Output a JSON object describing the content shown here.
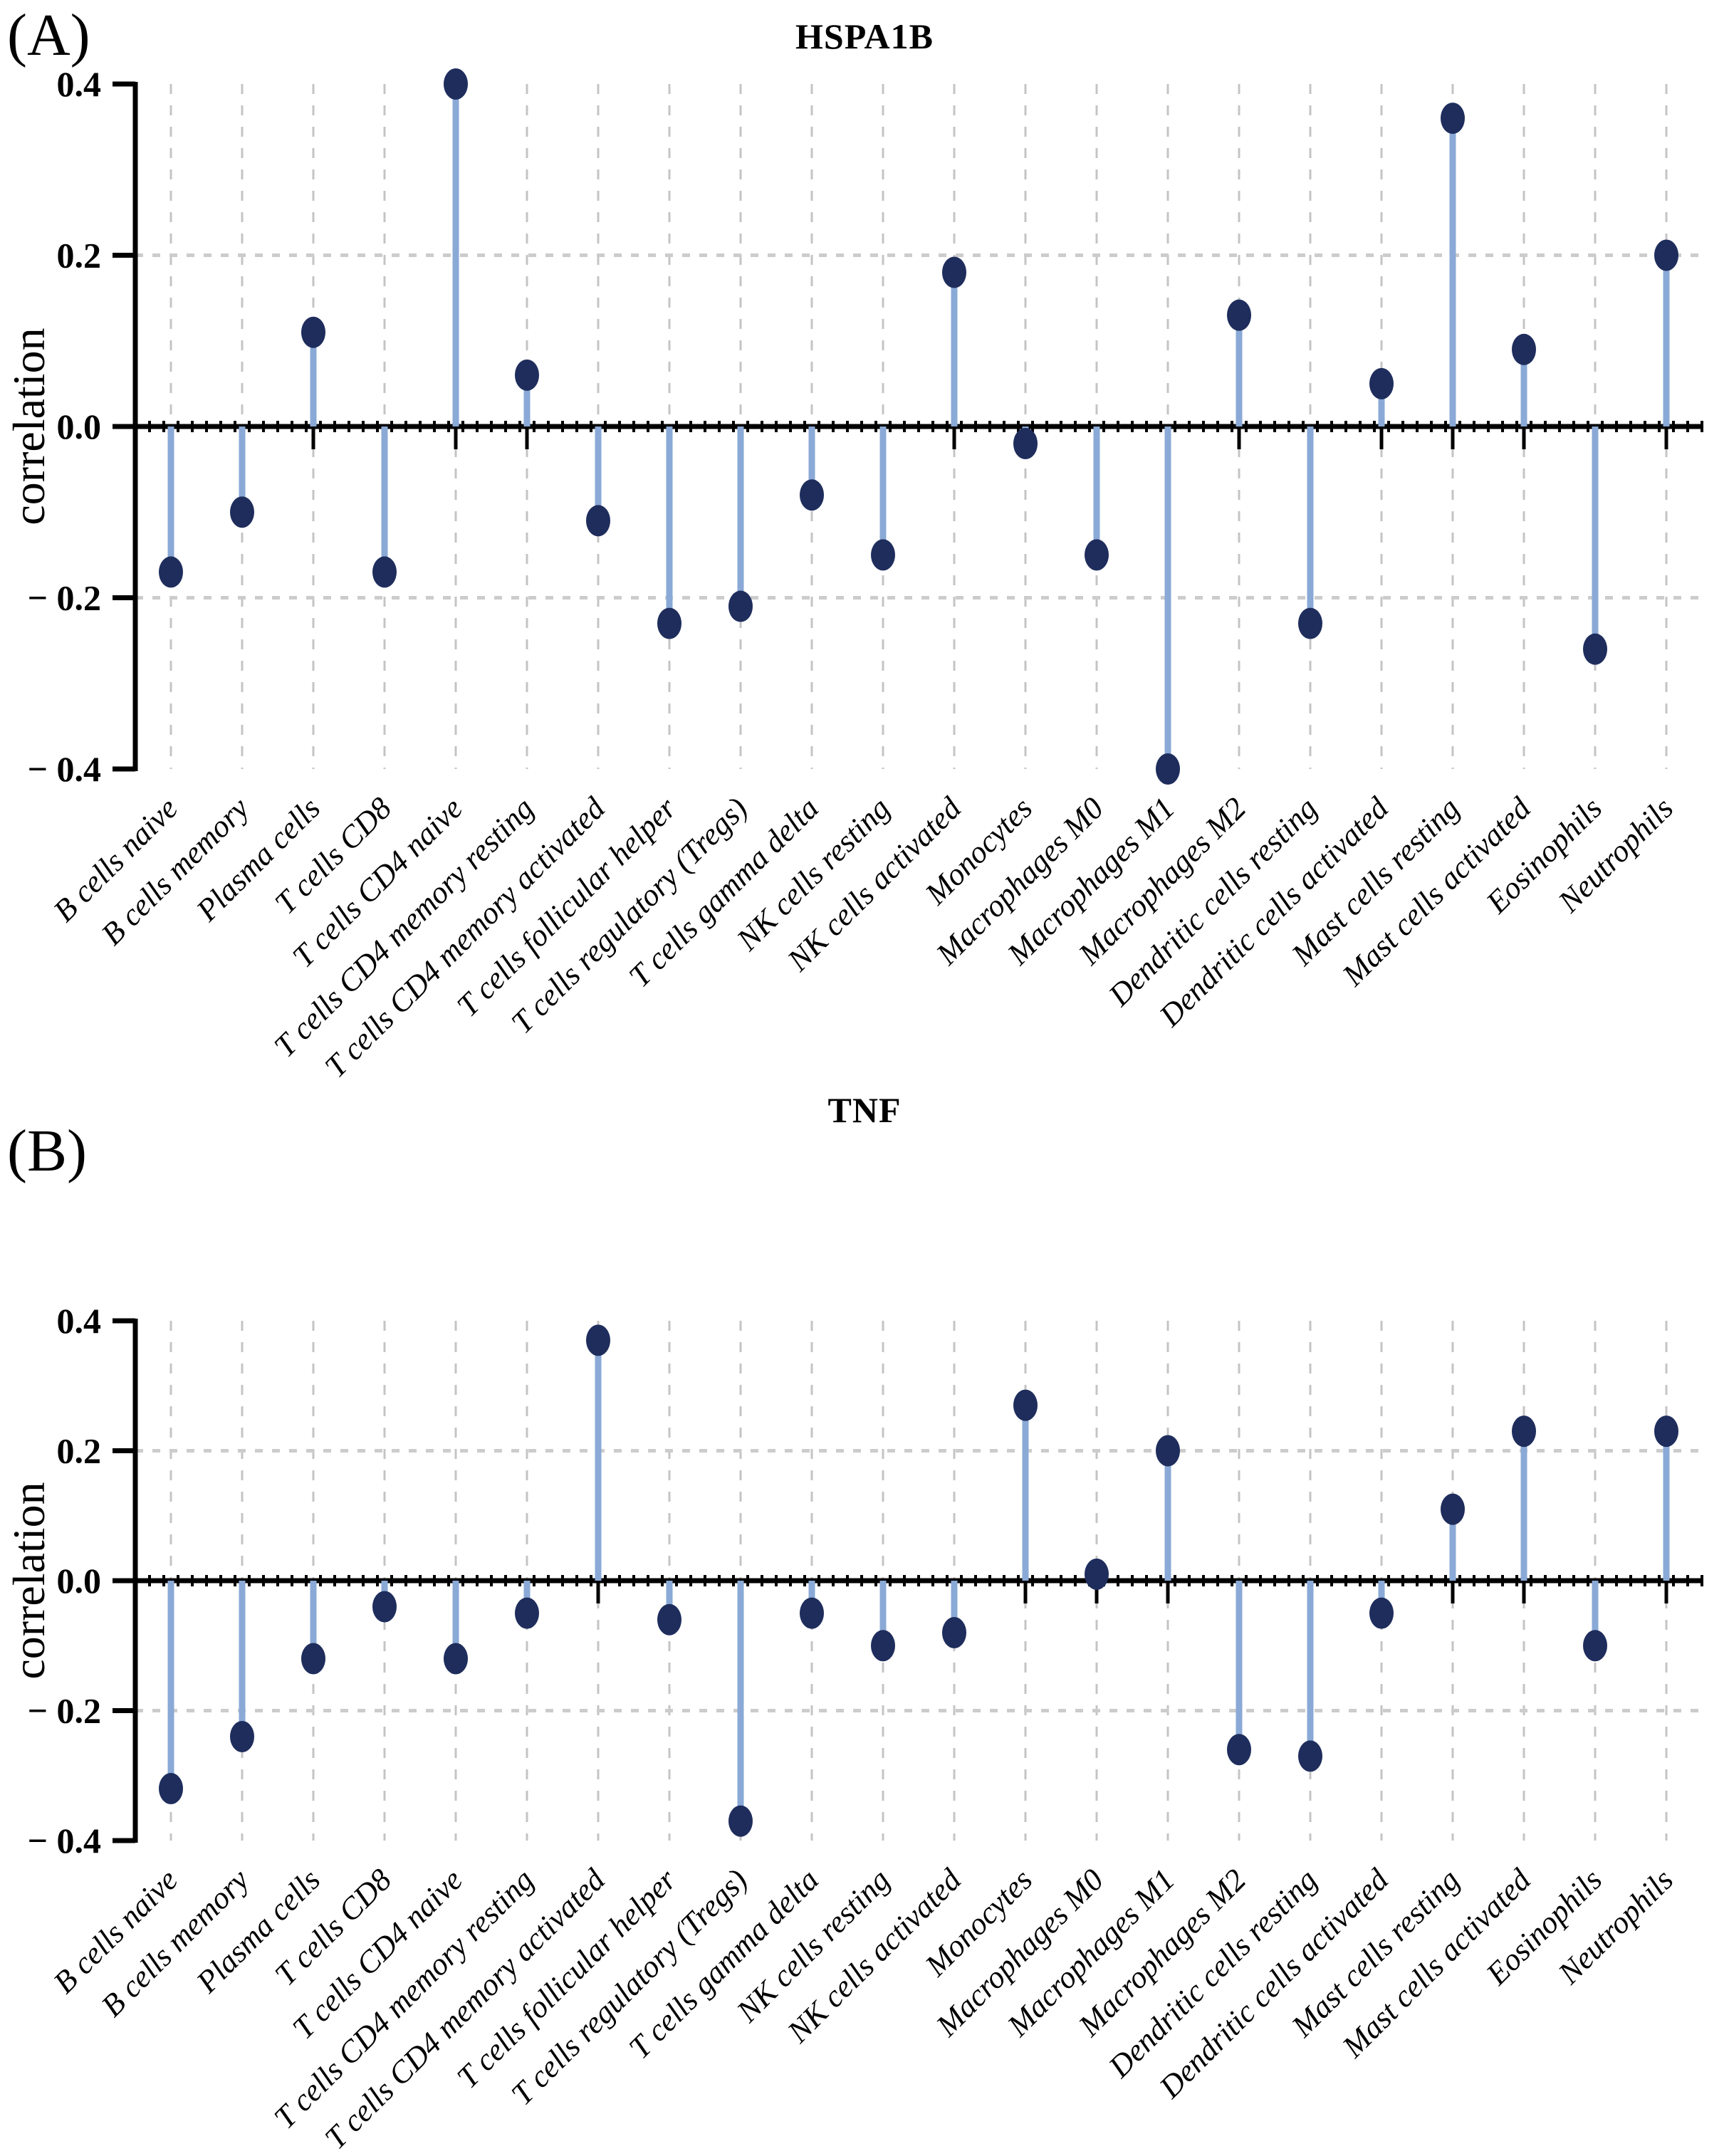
{
  "page": {
    "background": "#ffffff"
  },
  "colors": {
    "stem": "#8aa9d6",
    "dot": "#1e2d5c",
    "grid_vertical": "#c4c4c4",
    "grid_horizontal": "#cccccc",
    "axis": "#000000",
    "text": "#000000"
  },
  "panels": [
    {
      "panel_label": "(A)"
    },
    {
      "panel_label": "(B)"
    }
  ],
  "chart_data": [
    {
      "type": "stem",
      "title": "HSPA1B",
      "xlabel": "",
      "ylabel": "correlation",
      "ylim": [
        -0.4,
        0.4
      ],
      "yticks": [
        0.4,
        0.2,
        0.0,
        -0.2,
        -0.4
      ],
      "ytick_labels": [
        "0.4",
        "0.2",
        "0.0",
        "− 0.2",
        "− 0.4"
      ],
      "grid_y": [
        0.2,
        -0.2
      ],
      "grid": "dashed",
      "legend_position": "none",
      "categories": [
        "B cells naive",
        "B cells memory",
        "Plasma cells",
        "T cells CD8",
        "T cells CD4 naive",
        "T cells CD4 memory resting",
        "T cells CD4 memory activated",
        "T cells follicular helper",
        "T cells regulatory (Tregs)",
        "T cells gamma delta",
        "NK cells resting",
        "NK cells activated",
        "Monocytes",
        "Macrophages M0",
        "Macrophages M1",
        "Macrophages M2",
        "Dendritic cells resting",
        "Dendritic cells activated",
        "Mast cells resting",
        "Mast cells activated",
        "Eosinophils",
        "Neutrophils"
      ],
      "values": [
        -0.17,
        -0.1,
        0.11,
        -0.17,
        0.4,
        0.06,
        -0.11,
        -0.23,
        -0.21,
        -0.08,
        -0.15,
        0.18,
        -0.02,
        -0.15,
        -0.4,
        0.13,
        -0.23,
        0.05,
        0.36,
        0.09,
        -0.26,
        0.2
      ]
    },
    {
      "type": "stem",
      "title": "TNF",
      "xlabel": "",
      "ylabel": "correlation",
      "ylim": [
        -0.4,
        0.4
      ],
      "yticks": [
        0.4,
        0.2,
        0.0,
        -0.2,
        -0.4
      ],
      "ytick_labels": [
        "0.4",
        "0.2",
        "0.0",
        "− 0.2",
        "− 0.4"
      ],
      "grid_y": [
        0.2,
        -0.2
      ],
      "grid": "dashed",
      "legend_position": "none",
      "categories": [
        "B cells naive",
        "B cells memory",
        "Plasma cells",
        "T cells CD8",
        "T cells CD4 naive",
        "T cells CD4 memory resting",
        "T cells CD4 memory activated",
        "T cells follicular helper",
        "T cells regulatory (Tregs)",
        "T cells gamma delta",
        "NK cells resting",
        "NK cells activated",
        "Monocytes",
        "Macrophages M0",
        "Macrophages M1",
        "Macrophages M2",
        "Dendritic cells resting",
        "Dendritic cells activated",
        "Mast cells resting",
        "Mast cells activated",
        "Eosinophils",
        "Neutrophils"
      ],
      "values": [
        -0.32,
        -0.24,
        -0.12,
        -0.04,
        -0.12,
        -0.05,
        0.37,
        -0.06,
        -0.37,
        -0.05,
        -0.1,
        -0.08,
        0.27,
        0.01,
        0.2,
        -0.26,
        -0.27,
        -0.05,
        0.11,
        0.23,
        -0.1,
        0.23
      ]
    }
  ]
}
